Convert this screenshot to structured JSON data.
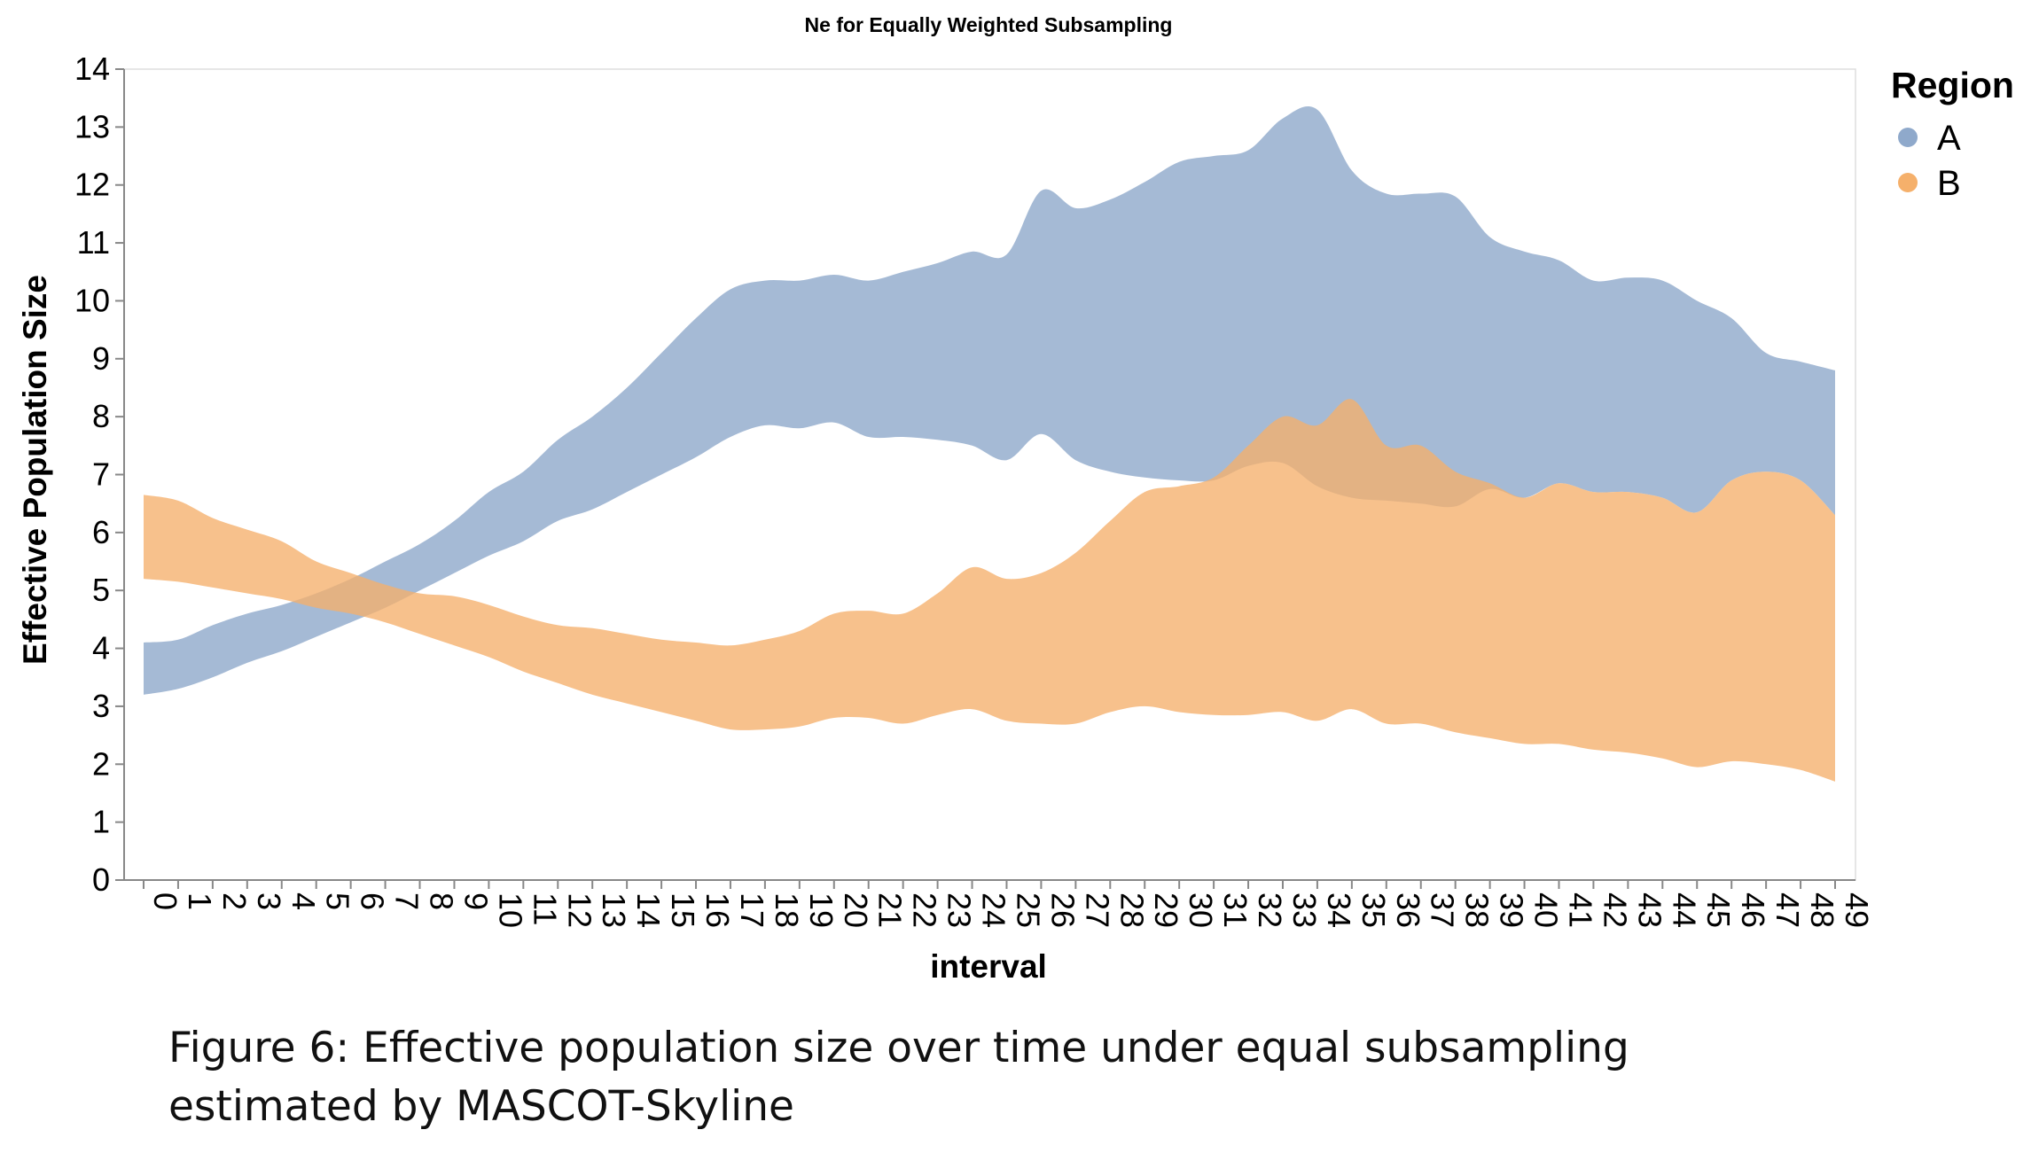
{
  "chart_data": {
    "type": "area",
    "title": "Ne for Equally Weighted Subsampling",
    "xlabel": "interval",
    "ylabel": "Effective Population Size",
    "categories": [
      0,
      1,
      2,
      3,
      4,
      5,
      6,
      7,
      8,
      9,
      10,
      11,
      12,
      13,
      14,
      15,
      16,
      17,
      18,
      19,
      20,
      21,
      22,
      23,
      24,
      25,
      26,
      27,
      28,
      29,
      30,
      31,
      32,
      33,
      34,
      35,
      36,
      37,
      38,
      39,
      40,
      41,
      42,
      43,
      44,
      45,
      46,
      47,
      48,
      49
    ],
    "ylim": [
      0,
      14
    ],
    "yticks": [
      0,
      1,
      2,
      3,
      4,
      5,
      6,
      7,
      8,
      9,
      10,
      11,
      12,
      13,
      14
    ],
    "grid": false,
    "legend": {
      "title": "Region",
      "position": "top-right"
    },
    "series": [
      {
        "name": "A",
        "color": "#8fa9cb",
        "opacity": 0.8,
        "upper": [
          4.1,
          4.15,
          4.4,
          4.6,
          4.75,
          4.95,
          5.2,
          5.5,
          5.8,
          6.2,
          6.7,
          7.05,
          7.6,
          8.0,
          8.5,
          9.1,
          9.7,
          10.2,
          10.35,
          10.35,
          10.45,
          10.35,
          10.5,
          10.65,
          10.85,
          10.8,
          11.9,
          11.6,
          11.75,
          12.05,
          12.4,
          12.5,
          12.6,
          13.15,
          13.3,
          12.25,
          11.85,
          11.85,
          11.8,
          11.1,
          10.85,
          10.7,
          10.35,
          10.4,
          10.35,
          10.0,
          9.7,
          9.1,
          8.95,
          8.8
        ],
        "lower": [
          3.2,
          3.3,
          3.5,
          3.75,
          3.95,
          4.2,
          4.45,
          4.7,
          5.0,
          5.3,
          5.6,
          5.85,
          6.2,
          6.4,
          6.7,
          7.0,
          7.3,
          7.65,
          7.85,
          7.8,
          7.9,
          7.65,
          7.65,
          7.6,
          7.5,
          7.25,
          7.7,
          7.25,
          7.05,
          6.95,
          6.9,
          6.9,
          7.15,
          7.2,
          6.8,
          6.6,
          6.55,
          6.5,
          6.45,
          6.75,
          6.6,
          6.85,
          6.7,
          6.7,
          6.6,
          6.35,
          6.9,
          7.05,
          6.9,
          6.3
        ]
      },
      {
        "name": "B",
        "color": "#f5b06b",
        "opacity": 0.78,
        "upper": [
          6.65,
          6.55,
          6.25,
          6.05,
          5.85,
          5.5,
          5.3,
          5.1,
          4.95,
          4.9,
          4.75,
          4.55,
          4.4,
          4.35,
          4.25,
          4.15,
          4.1,
          4.05,
          4.15,
          4.3,
          4.6,
          4.65,
          4.6,
          4.95,
          5.4,
          5.2,
          5.3,
          5.65,
          6.2,
          6.7,
          6.8,
          6.95,
          7.5,
          8.0,
          7.85,
          8.3,
          7.5,
          7.5,
          7.05,
          6.85,
          6.6,
          6.85,
          6.7,
          6.7,
          6.6,
          6.35,
          6.9,
          7.05,
          6.9,
          6.3
        ],
        "lower": [
          5.2,
          5.15,
          5.05,
          4.95,
          4.85,
          4.7,
          4.6,
          4.45,
          4.25,
          4.05,
          3.85,
          3.6,
          3.4,
          3.2,
          3.05,
          2.9,
          2.75,
          2.6,
          2.6,
          2.65,
          2.8,
          2.8,
          2.7,
          2.85,
          2.95,
          2.75,
          2.7,
          2.7,
          2.9,
          3.0,
          2.9,
          2.85,
          2.85,
          2.9,
          2.75,
          2.95,
          2.7,
          2.7,
          2.55,
          2.45,
          2.35,
          2.35,
          2.25,
          2.2,
          2.1,
          1.95,
          2.05,
          2.0,
          1.9,
          1.7
        ]
      }
    ]
  },
  "caption": {
    "line1": "Figure 6: Effective population size over time under equal subsampling",
    "line2": "estimated by MASCOT-Skyline"
  }
}
